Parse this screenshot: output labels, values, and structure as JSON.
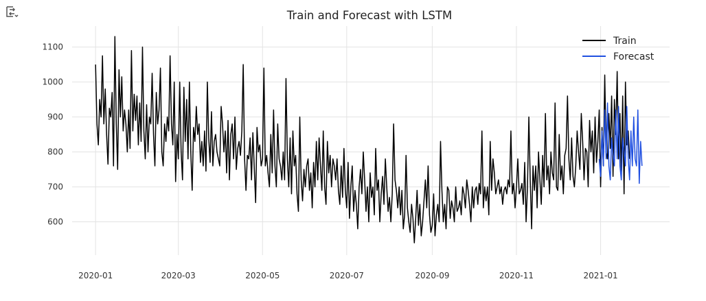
{
  "toolbar": {
    "output_icon": "output-toggle-icon"
  },
  "chart_data": {
    "type": "line",
    "title": "Train and Forecast with LSTM",
    "xlabel": "",
    "ylabel": "",
    "x_ticks": [
      "2020-01",
      "2020-03",
      "2020-05",
      "2020-07",
      "2020-09",
      "2020-11",
      "2021-01"
    ],
    "y_ticks": [
      600,
      700,
      800,
      900,
      1000,
      1100
    ],
    "xlim": [
      "2019-12-15",
      "2021-02-20"
    ],
    "ylim": [
      505,
      1160
    ],
    "grid": true,
    "legend_position": "top-right",
    "colors": {
      "train": "#000000",
      "forecast": "#1f4fe0"
    },
    "series": [
      {
        "name": "Train",
        "start": "2020-01-01",
        "freq": "D",
        "values": [
          1050,
          880,
          820,
          950,
          900,
          1075,
          880,
          980,
          850,
          765,
          925,
          900,
          970,
          760,
          1130,
          880,
          750,
          1035,
          900,
          1015,
          860,
          920,
          880,
          800,
          920,
          810,
          1090,
          860,
          965,
          890,
          960,
          820,
          940,
          830,
          1100,
          860,
          780,
          935,
          800,
          900,
          880,
          1025,
          850,
          760,
          970,
          880,
          920,
          1040,
          800,
          760,
          880,
          830,
          900,
          860,
          1075,
          880,
          820,
          1000,
          715,
          850,
          780,
          1000,
          800,
          720,
          985,
          830,
          950,
          780,
          1000,
          800,
          690,
          870,
          830,
          930,
          850,
          880,
          770,
          830,
          760,
          860,
          745,
          1000,
          840,
          770,
          915,
          760,
          830,
          850,
          800,
          780,
          760,
          930,
          880,
          800,
          860,
          740,
          890,
          720,
          850,
          880,
          780,
          900,
          750,
          810,
          830,
          790,
          860,
          1050,
          780,
          690,
          790,
          780,
          840,
          720,
          855,
          755,
          655,
          870,
          800,
          820,
          760,
          780,
          1040,
          760,
          790,
          740,
          700,
          850,
          740,
          920,
          760,
          700,
          880,
          780,
          760,
          720,
          800,
          720,
          1010,
          780,
          700,
          840,
          680,
          860,
          760,
          790,
          680,
          630,
          900,
          720,
          660,
          750,
          700,
          760,
          780,
          690,
          740,
          640,
          770,
          700,
          830,
          720,
          840,
          760,
          690,
          860,
          700,
          650,
          830,
          740,
          790,
          700,
          780,
          760,
          720,
          780,
          690,
          650,
          760,
          670,
          810,
          690,
          640,
          770,
          610,
          700,
          760,
          630,
          690,
          650,
          580,
          700,
          750,
          680,
          800,
          720,
          630,
          700,
          600,
          740,
          670,
          700,
          620,
          810,
          690,
          720,
          600,
          680,
          730,
          650,
          780,
          700,
          630,
          670,
          600,
          680,
          880,
          720,
          690,
          640,
          700,
          620,
          690,
          580,
          620,
          790,
          640,
          600,
          570,
          650,
          610,
          540,
          610,
          690,
          590,
          650,
          560,
          600,
          660,
          720,
          640,
          760,
          620,
          570,
          590,
          680,
          560,
          620,
          650,
          600,
          830,
          690,
          600,
          650,
          580,
          700,
          690,
          610,
          660,
          640,
          600,
          700,
          630,
          640,
          660,
          620,
          700,
          680,
          640,
          720,
          690,
          650,
          600,
          700,
          640,
          690,
          700,
          650,
          710,
          680,
          860,
          640,
          700,
          660,
          700,
          620,
          830,
          690,
          780,
          740,
          680,
          700,
          720,
          680,
          700,
          650,
          690,
          700,
          680,
          720,
          700,
          860,
          680,
          710,
          640,
          700,
          780,
          680,
          690,
          710,
          650,
          770,
          600,
          700,
          900,
          720,
          580,
          760,
          690,
          760,
          640,
          800,
          720,
          650,
          790,
          700,
          910,
          720,
          760,
          680,
          800,
          740,
          720,
          940,
          700,
          690,
          850,
          720,
          760,
          680,
          790,
          810,
          960,
          780,
          720,
          840,
          730,
          700,
          760,
          860,
          800,
          750,
          910,
          830,
          720,
          810,
          800,
          700,
          890,
          800,
          860,
          740,
          900,
          770,
          830,
          920,
          700,
          870,
          760,
          1020,
          800,
          780,
          910,
          810,
          960,
          730,
          950,
          850,
          1030,
          780,
          910,
          740,
          960,
          680,
          1000,
          820,
          860,
          780
        ]
      },
      {
        "name": "Forecast",
        "start": "2020-12-31",
        "freq": "D",
        "values": [
          780,
          730,
          860,
          760,
          920,
          780,
          940,
          760,
          720,
          840,
          790,
          760,
          920,
          780,
          930,
          760,
          720,
          840,
          800,
          760,
          930,
          780,
          720,
          860,
          760,
          900,
          780,
          760,
          920,
          710,
          830,
          760
        ]
      }
    ]
  }
}
